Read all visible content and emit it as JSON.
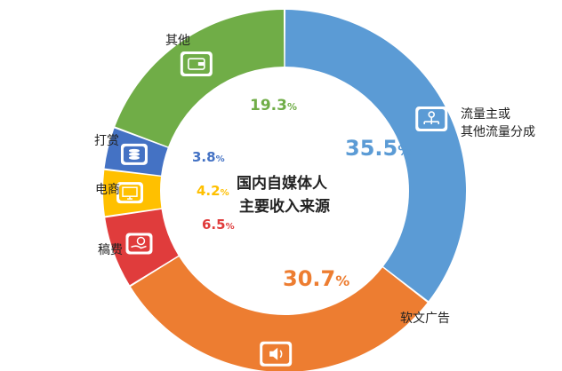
{
  "chart_data": {
    "type": "pie",
    "title": "国内自媒体人\n主要收入来源",
    "title_lines": [
      "国内自媒体人",
      "主要收入来源"
    ],
    "slices": [
      {
        "label": "流量主或\n其他流量分成",
        "label_lines": [
          "流量主或",
          "其他流量分成"
        ],
        "value": 35.5,
        "display": "35.5",
        "color": "#5b9bd5",
        "icon": "network-icon"
      },
      {
        "label": "软文广告",
        "label_lines": [
          "软文广告"
        ],
        "value": 30.7,
        "display": "30.7",
        "color": "#ed7d31",
        "icon": "speaker-icon"
      },
      {
        "label": "稿费",
        "label_lines": [
          "稿费"
        ],
        "value": 6.5,
        "display": "6.5",
        "color": "#e03c3c",
        "icon": "money-hand-icon"
      },
      {
        "label": "电商",
        "label_lines": [
          "电商"
        ],
        "value": 4.2,
        "display": "4.2",
        "color": "#ffc000",
        "icon": "cart-monitor-icon"
      },
      {
        "label": "打赏",
        "label_lines": [
          "打赏"
        ],
        "value": 3.8,
        "display": "3.8",
        "color": "#4472c4",
        "icon": "coins-icon"
      },
      {
        "label": "其他",
        "label_lines": [
          "其他"
        ],
        "value": 19.3,
        "display": "19.3",
        "color": "#70ad47",
        "icon": "wallet-icon"
      }
    ],
    "percent_symbol": "%",
    "legend": "none"
  }
}
